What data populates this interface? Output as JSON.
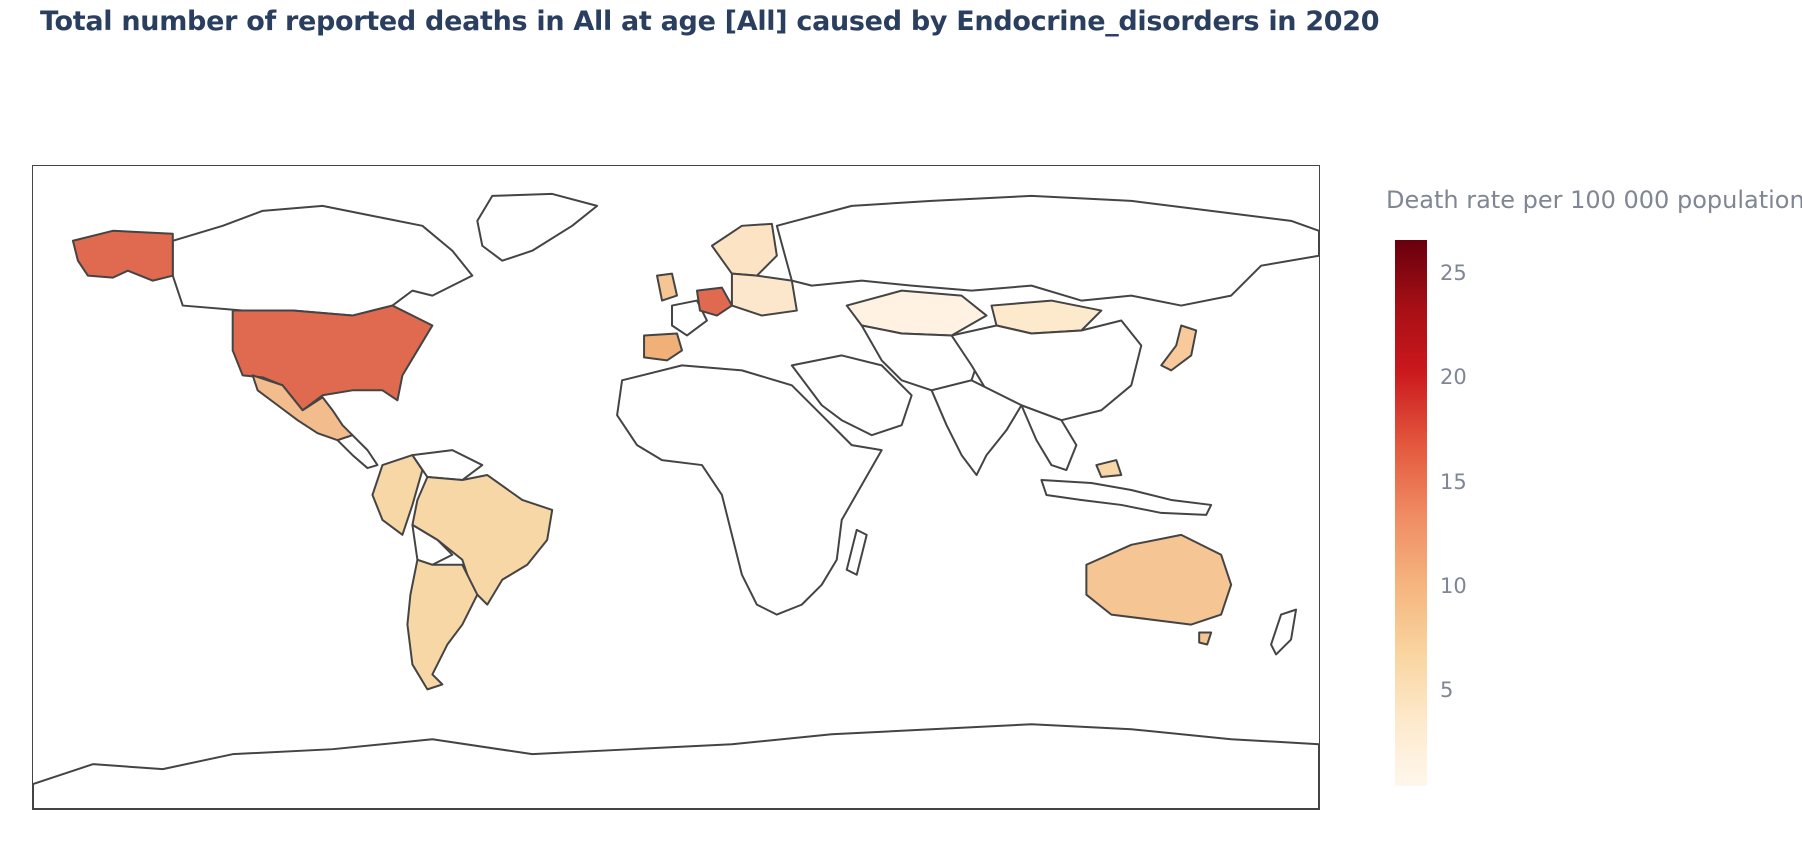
{
  "title": "Total number of reported deaths in All at age [All] caused by Endocrine_disorders in 2020",
  "colorbar": {
    "title": "Death rate per 100 000 population",
    "ticks": [
      "25",
      "20",
      "15",
      "10",
      "5"
    ],
    "range": [
      0.5,
      26.5
    ],
    "colorscale": [
      "#fff7ec",
      "#fde9cc",
      "#f9d5a0",
      "#f5b47e",
      "#ef8a62",
      "#e45a3f",
      "#cb181d",
      "#a50f15",
      "#67000d"
    ]
  },
  "map": {
    "projection": "equirectangular",
    "colored_countries": [
      {
        "name": "United States",
        "color": "#df6a4f"
      },
      {
        "name": "Germany",
        "color": "#df6a4f"
      },
      {
        "name": "Mexico",
        "color": "#f2bc8c"
      },
      {
        "name": "Spain",
        "color": "#f0b078"
      },
      {
        "name": "Australia",
        "color": "#f5c594"
      },
      {
        "name": "Brazil",
        "color": "#f8d7a6"
      },
      {
        "name": "Argentina",
        "color": "#f8d7a6"
      },
      {
        "name": "Kazakhstan",
        "color": "#fff2e2"
      },
      {
        "name": "Mongolia",
        "color": "#fde9cc"
      },
      {
        "name": "Japan",
        "color": "#f7c99b"
      }
    ],
    "no_data_color": "#ffffff"
  }
}
